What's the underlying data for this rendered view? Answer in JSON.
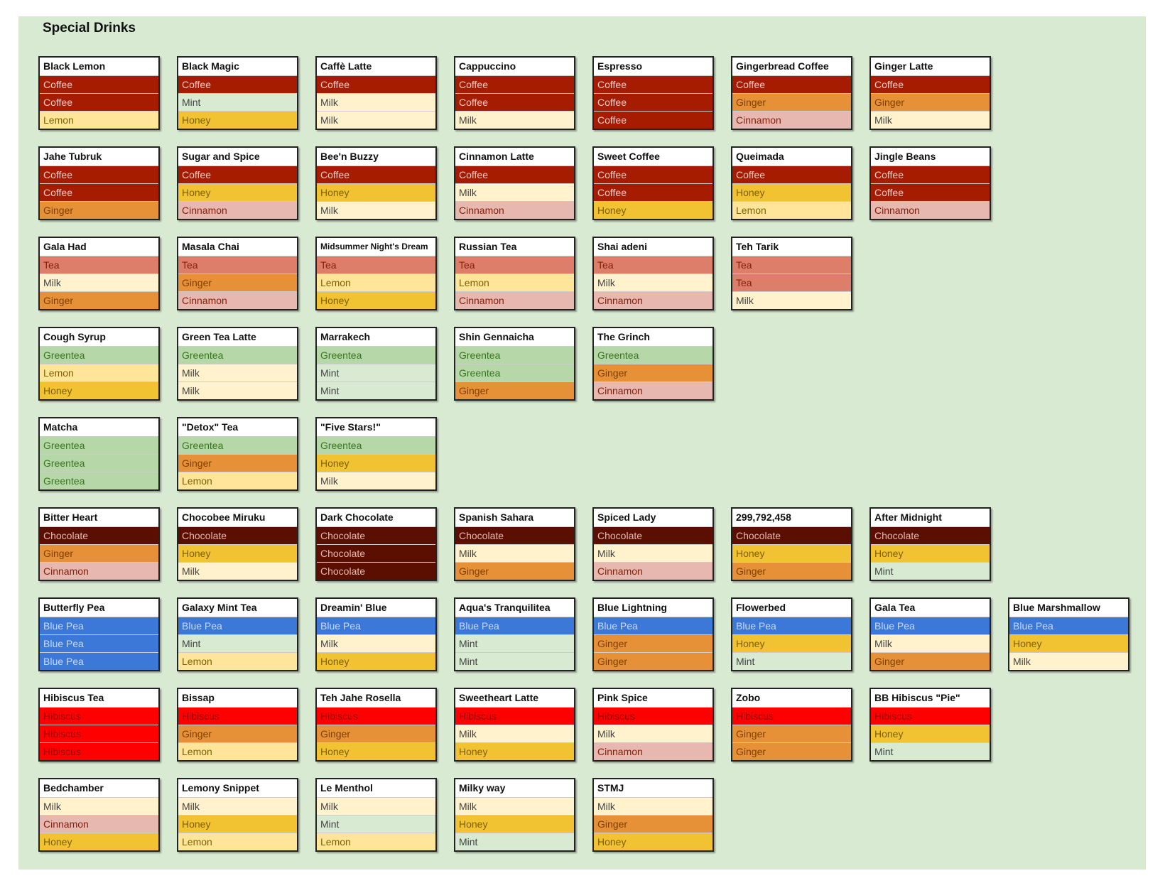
{
  "title": "Special Drinks",
  "ingredient_colors": {
    "Coffee": {
      "fill": "#a61c00",
      "text": "#f4cccc"
    },
    "Mint": {
      "fill": "#d9ead3",
      "text": "#444444"
    },
    "Honey": {
      "fill": "#f1c232",
      "text": "#7f6000"
    },
    "Milk": {
      "fill": "#fff2cc",
      "text": "#444444"
    },
    "Lemon": {
      "fill": "#ffe599",
      "text": "#7f6000"
    },
    "Ginger": {
      "fill": "#e69138",
      "text": "#7f3f00"
    },
    "Cinnamon": {
      "fill": "#e6b8af",
      "text": "#85200c"
    },
    "Tea": {
      "fill": "#dd7e6b",
      "text": "#85200c"
    },
    "Greentea": {
      "fill": "#b6d7a8",
      "text": "#38761d"
    },
    "Chocolate": {
      "fill": "#5b0f00",
      "text": "#e6b8af"
    },
    "Blue Pea": {
      "fill": "#3c78d8",
      "text": "#c9daf8"
    },
    "Hibiscus": {
      "fill": "#ff0000",
      "text": "#990000"
    }
  },
  "rows": [
    [
      {
        "name": "Black Lemon",
        "ingredients": [
          "Coffee",
          "Coffee",
          "Lemon"
        ]
      },
      {
        "name": "Black Magic",
        "ingredients": [
          "Coffee",
          "Mint",
          "Honey"
        ]
      },
      {
        "name": "Caffè Latte",
        "ingredients": [
          "Coffee",
          "Milk",
          "Milk"
        ]
      },
      {
        "name": "Cappuccino",
        "ingredients": [
          "Coffee",
          "Coffee",
          "Milk"
        ]
      },
      {
        "name": "Espresso",
        "ingredients": [
          "Coffee",
          "Coffee",
          "Coffee"
        ]
      },
      {
        "name": "Gingerbread Coffee",
        "ingredients": [
          "Coffee",
          "Ginger",
          "Cinnamon"
        ]
      },
      {
        "name": "Ginger Latte",
        "ingredients": [
          "Coffee",
          "Ginger",
          "Milk"
        ]
      }
    ],
    [
      {
        "name": "Jahe Tubruk",
        "ingredients": [
          "Coffee",
          "Coffee",
          "Ginger"
        ]
      },
      {
        "name": "Sugar and Spice",
        "ingredients": [
          "Coffee",
          "Honey",
          "Cinnamon"
        ]
      },
      {
        "name": "Bee'n Buzzy",
        "ingredients": [
          "Coffee",
          "Honey",
          "Milk"
        ]
      },
      {
        "name": "Cinnamon Latte",
        "ingredients": [
          "Coffee",
          "Milk",
          "Cinnamon"
        ]
      },
      {
        "name": "Sweet Coffee",
        "ingredients": [
          "Coffee",
          "Coffee",
          "Honey"
        ]
      },
      {
        "name": "Queimada",
        "ingredients": [
          "Coffee",
          "Honey",
          "Lemon"
        ]
      },
      {
        "name": "Jingle Beans",
        "ingredients": [
          "Coffee",
          "Coffee",
          "Cinnamon"
        ]
      }
    ],
    [
      {
        "name": "Gala Had",
        "ingredients": [
          "Tea",
          "Milk",
          "Ginger"
        ]
      },
      {
        "name": "Masala Chai",
        "ingredients": [
          "Tea",
          "Ginger",
          "Cinnamon"
        ]
      },
      {
        "name": "Midsummer Night's Dream",
        "ingredients": [
          "Tea",
          "Lemon",
          "Honey"
        ]
      },
      {
        "name": "Russian Tea",
        "ingredients": [
          "Tea",
          "Lemon",
          "Cinnamon"
        ]
      },
      {
        "name": "Shai adeni",
        "ingredients": [
          "Tea",
          "Milk",
          "Cinnamon"
        ]
      },
      {
        "name": "Teh Tarik",
        "ingredients": [
          "Tea",
          "Tea",
          "Milk"
        ]
      }
    ],
    [
      {
        "name": "Cough Syrup",
        "ingredients": [
          "Greentea",
          "Lemon",
          "Honey"
        ]
      },
      {
        "name": "Green Tea Latte",
        "ingredients": [
          "Greentea",
          "Milk",
          "Milk"
        ]
      },
      {
        "name": "Marrakech",
        "ingredients": [
          "Greentea",
          "Mint",
          "Mint"
        ]
      },
      {
        "name": "Shin Gennaicha",
        "ingredients": [
          "Greentea",
          "Greentea",
          "Ginger"
        ]
      },
      {
        "name": "The Grinch",
        "ingredients": [
          "Greentea",
          "Ginger",
          "Cinnamon"
        ]
      }
    ],
    [
      {
        "name": "Matcha",
        "ingredients": [
          "Greentea",
          "Greentea",
          "Greentea"
        ]
      },
      {
        "name": "\"Detox\" Tea",
        "ingredients": [
          "Greentea",
          "Ginger",
          "Lemon"
        ]
      },
      {
        "name": "\"Five Stars!\"",
        "ingredients": [
          "Greentea",
          "Honey",
          "Milk"
        ]
      }
    ],
    [
      {
        "name": "Bitter Heart",
        "ingredients": [
          "Chocolate",
          "Ginger",
          "Cinnamon"
        ]
      },
      {
        "name": "Chocobee Miruku",
        "ingredients": [
          "Chocolate",
          "Honey",
          "Milk"
        ]
      },
      {
        "name": "Dark Chocolate",
        "ingredients": [
          "Chocolate",
          "Chocolate",
          "Chocolate"
        ]
      },
      {
        "name": "Spanish Sahara",
        "ingredients": [
          "Chocolate",
          "Milk",
          "Ginger"
        ]
      },
      {
        "name": "Spiced Lady",
        "ingredients": [
          "Chocolate",
          "Milk",
          "Cinnamon"
        ]
      },
      {
        "name": "299,792,458",
        "ingredients": [
          "Chocolate",
          "Honey",
          "Ginger"
        ]
      },
      {
        "name": "After Midnight",
        "ingredients": [
          "Chocolate",
          "Honey",
          "Mint"
        ]
      }
    ],
    [
      {
        "name": "Butterfly Pea",
        "ingredients": [
          "Blue Pea",
          "Blue Pea",
          "Blue Pea"
        ]
      },
      {
        "name": "Galaxy Mint Tea",
        "ingredients": [
          "Blue Pea",
          "Mint",
          "Lemon"
        ]
      },
      {
        "name": "Dreamin' Blue",
        "ingredients": [
          "Blue Pea",
          "Milk",
          "Honey"
        ]
      },
      {
        "name": "Aqua's Tranquilitea",
        "ingredients": [
          "Blue Pea",
          "Mint",
          "Mint"
        ]
      },
      {
        "name": "Blue Lightning",
        "ingredients": [
          "Blue Pea",
          "Ginger",
          "Ginger"
        ]
      },
      {
        "name": "Flowerbed",
        "ingredients": [
          "Blue Pea",
          "Honey",
          "Mint"
        ]
      },
      {
        "name": "Gala Tea",
        "ingredients": [
          "Blue Pea",
          "Milk",
          "Ginger"
        ]
      },
      {
        "name": "Blue Marshmallow",
        "ingredients": [
          "Blue Pea",
          "Honey",
          "Milk"
        ]
      }
    ],
    [
      {
        "name": "Hibiscus Tea",
        "ingredients": [
          "Hibiscus",
          "Hibiscus",
          "Hibiscus"
        ]
      },
      {
        "name": "Bissap",
        "ingredients": [
          "Hibiscus",
          "Ginger",
          "Lemon"
        ]
      },
      {
        "name": "Teh Jahe Rosella",
        "ingredients": [
          "Hibiscus",
          "Ginger",
          "Honey"
        ]
      },
      {
        "name": "Sweetheart Latte",
        "ingredients": [
          "Hibiscus",
          "Milk",
          "Honey"
        ]
      },
      {
        "name": "Pink Spice",
        "ingredients": [
          "Hibiscus",
          "Milk",
          "Cinnamon"
        ]
      },
      {
        "name": "Zobo",
        "ingredients": [
          "Hibiscus",
          "Ginger",
          "Ginger"
        ]
      },
      {
        "name": "BB Hibiscus \"Pie\"",
        "ingredients": [
          "Hibiscus",
          "Honey",
          "Mint"
        ]
      }
    ],
    [
      {
        "name": "Bedchamber",
        "ingredients": [
          "Milk",
          "Cinnamon",
          "Honey"
        ]
      },
      {
        "name": "Lemony Snippet",
        "ingredients": [
          "Milk",
          "Honey",
          "Lemon"
        ]
      },
      {
        "name": "Le Menthol",
        "ingredients": [
          "Milk",
          "Mint",
          "Lemon"
        ]
      },
      {
        "name": "Milky way",
        "ingredients": [
          "Milk",
          "Honey",
          "Mint"
        ]
      },
      {
        "name": "STMJ",
        "ingredients": [
          "Milk",
          "Ginger",
          "Honey"
        ]
      }
    ]
  ]
}
